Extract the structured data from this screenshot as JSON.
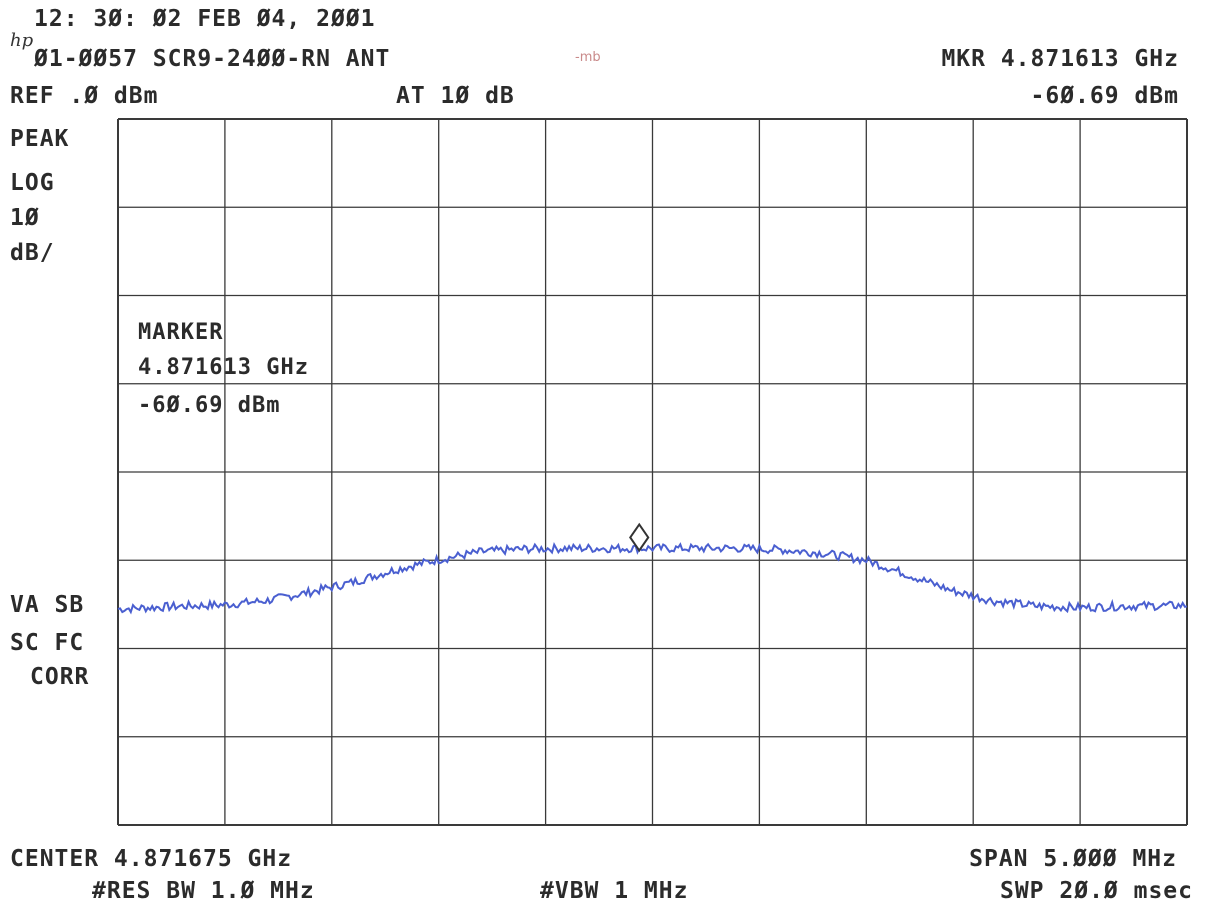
{
  "header": {
    "timestamp": "12: 3Ø: Ø2 FEB Ø4, 2ØØ1",
    "title": "Ø1-ØØ57 SCR9-24ØØ-RN ANT",
    "handwritten_note": "-mb",
    "logo": "hp",
    "mkr_freq": "MKR 4.871613 GHz",
    "ref_level": "REF .Ø dBm",
    "attenuation": "AT 1Ø dB",
    "mkr_level": "-6Ø.69 dBm"
  },
  "left_labels": {
    "detector": "PEAK",
    "scale_type": "LOG",
    "scale_value": "1Ø",
    "scale_unit": "dB/",
    "flags_1": "VA SB",
    "flags_2": "SC FC",
    "corr": "CORR"
  },
  "marker_box": {
    "title": "MARKER",
    "freq": "4.871613 GHz",
    "level": "-6Ø.69 dBm"
  },
  "footer": {
    "center": "CENTER 4.871675 GHz",
    "span": "SPAN 5.ØØØ MHz",
    "res_bw": "#RES BW 1.Ø MHz",
    "vbw": "#VBW 1 MHz",
    "sweep": "SWP 2Ø.Ø msec"
  },
  "colors": {
    "grid": "#3a3a3a",
    "trace": "#4a5fd0",
    "text": "#2b2b2b"
  },
  "chart_data": {
    "type": "line",
    "x_unit": "MHz offset from center",
    "y_unit": "dBm",
    "xlim": [
      -2.5,
      2.5
    ],
    "ylim": [
      -100,
      0
    ],
    "grid": true,
    "divisions_x": 10,
    "divisions_y": 8,
    "series": [
      {
        "points": [
          [
            -2.5,
            -69.4
          ],
          [
            -2.2,
            -69.0
          ],
          [
            -2.0,
            -68.8
          ],
          [
            -1.8,
            -68.2
          ],
          [
            -1.6,
            -67.0
          ],
          [
            -1.4,
            -65.6
          ],
          [
            -1.2,
            -63.8
          ],
          [
            -1.0,
            -62.4
          ],
          [
            -0.8,
            -61.3
          ],
          [
            -0.6,
            -60.9
          ],
          [
            -0.4,
            -60.8
          ],
          [
            -0.2,
            -60.8
          ],
          [
            0.0,
            -60.8
          ],
          [
            0.2,
            -60.8
          ],
          [
            0.4,
            -60.8
          ],
          [
            0.6,
            -61.0
          ],
          [
            0.8,
            -61.5
          ],
          [
            1.0,
            -62.5
          ],
          [
            1.2,
            -64.6
          ],
          [
            1.4,
            -66.8
          ],
          [
            1.6,
            -68.3
          ],
          [
            1.8,
            -69.0
          ],
          [
            2.0,
            -69.2
          ],
          [
            2.2,
            -69.0
          ],
          [
            2.5,
            -68.9
          ]
        ]
      }
    ],
    "marker": {
      "x": -0.062,
      "y": -60.69
    }
  }
}
